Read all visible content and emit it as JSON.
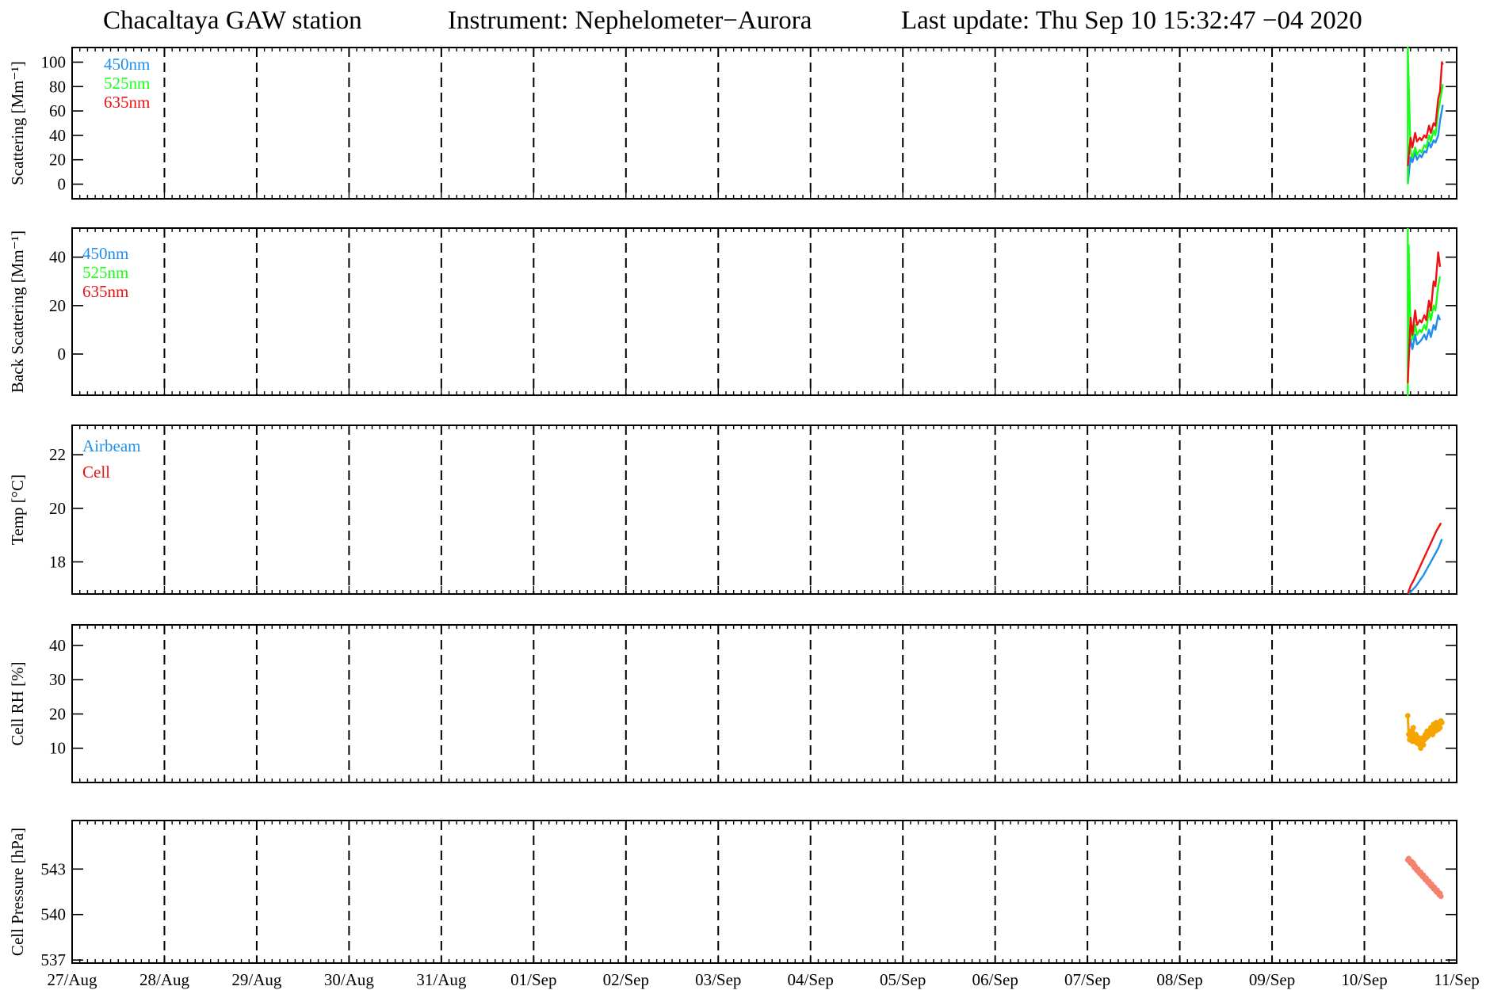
{
  "header": {
    "station": "Chacaltaya GAW station",
    "instrument": "Instrument: Nephelometer−Aurora",
    "last_update": "Last update: Thu Sep 10 15:32:47 −04 2020"
  },
  "colors": {
    "blue": "#1e8fea",
    "green": "#18ff18",
    "red": "#ee1111",
    "orange": "#f6a400",
    "salmon": "#f4826f"
  },
  "chart_data": [
    {
      "type": "line",
      "ylabel": "Scattering [Mm⁻¹]",
      "ylim": [
        -12,
        112
      ],
      "yticks": [
        0,
        20,
        40,
        60,
        80,
        100
      ],
      "x_ticklabels": [
        "27/Aug",
        "28/Aug",
        "29/Aug",
        "30/Aug",
        "31/Aug",
        "01/Sep",
        "02/Sep",
        "03/Sep",
        "04/Sep",
        "05/Sep",
        "06/Sep",
        "07/Sep",
        "08/Sep",
        "09/Sep",
        "10/Sep",
        "11/Sep"
      ],
      "xlim": [
        0,
        15
      ],
      "grid": "vertical dashed lines at each day",
      "legend_position": "top-left",
      "series": [
        {
          "name": "450nm",
          "color": "#1e8fea",
          "x": [
            14.47,
            14.5,
            14.52,
            14.55,
            14.57,
            14.6,
            14.62,
            14.65,
            14.67,
            14.7,
            14.72,
            14.75,
            14.77,
            14.8,
            14.82,
            14.85
          ],
          "y": [
            0,
            22,
            18,
            26,
            20,
            24,
            22,
            27,
            26,
            34,
            30,
            36,
            34,
            40,
            52,
            65
          ]
        },
        {
          "name": "525nm",
          "color": "#18ff18",
          "x": [
            14.47,
            14.47,
            14.5,
            14.52,
            14.55,
            14.57,
            14.6,
            14.62,
            14.65,
            14.67,
            14.7,
            14.72,
            14.75,
            14.77,
            14.8,
            14.82,
            14.85
          ],
          "y": [
            0,
            112,
            26,
            22,
            30,
            24,
            28,
            26,
            32,
            30,
            40,
            35,
            44,
            40,
            60,
            68,
            82
          ]
        },
        {
          "name": "635nm",
          "color": "#ee1111",
          "x": [
            14.47,
            14.5,
            14.52,
            14.55,
            14.57,
            14.6,
            14.62,
            14.65,
            14.67,
            14.7,
            14.72,
            14.75,
            14.77,
            14.8,
            14.82,
            14.84,
            14.85
          ],
          "y": [
            15,
            38,
            30,
            42,
            35,
            38,
            36,
            40,
            38,
            48,
            42,
            50,
            48,
            70,
            76,
            100,
            98
          ]
        }
      ]
    },
    {
      "type": "line",
      "ylabel": "Back Scattering [Mm⁻¹]",
      "ylim": [
        -17,
        52
      ],
      "yticks": [
        0,
        20,
        40
      ],
      "x_ticklabels": [
        "27/Aug",
        "28/Aug",
        "29/Aug",
        "30/Aug",
        "31/Aug",
        "01/Sep",
        "02/Sep",
        "03/Sep",
        "04/Sep",
        "05/Sep",
        "06/Sep",
        "07/Sep",
        "08/Sep",
        "09/Sep",
        "10/Sep",
        "11/Sep"
      ],
      "xlim": [
        0,
        15
      ],
      "grid": "vertical dashed lines at each day",
      "legend_position": "top-left",
      "series": [
        {
          "name": "450nm",
          "color": "#1e8fea",
          "x": [
            14.47,
            14.5,
            14.52,
            14.55,
            14.57,
            14.6,
            14.62,
            14.65,
            14.67,
            14.7,
            14.72,
            14.75,
            14.77,
            14.8,
            14.82
          ],
          "y": [
            -2,
            6,
            2,
            8,
            4,
            5,
            6,
            8,
            6,
            10,
            7,
            12,
            10,
            16,
            14
          ]
        },
        {
          "name": "525nm",
          "color": "#18ff18",
          "x": [
            14.47,
            14.47,
            14.48,
            14.5,
            14.52,
            14.55,
            14.57,
            14.6,
            14.62,
            14.65,
            14.67,
            14.7,
            14.72,
            14.75,
            14.77,
            14.8,
            14.82
          ],
          "y": [
            52,
            -17,
            45,
            10,
            6,
            12,
            8,
            10,
            9,
            12,
            10,
            18,
            14,
            20,
            18,
            28,
            32
          ]
        },
        {
          "name": "635nm",
          "color": "#ee1111",
          "x": [
            14.47,
            14.5,
            14.52,
            14.55,
            14.57,
            14.6,
            14.62,
            14.65,
            14.67,
            14.7,
            14.72,
            14.75,
            14.77,
            14.8,
            14.82
          ],
          "y": [
            -12,
            15,
            8,
            18,
            12,
            14,
            13,
            16,
            14,
            22,
            18,
            30,
            28,
            42,
            36
          ]
        }
      ]
    },
    {
      "type": "line",
      "ylabel": "Temp [°C]",
      "ylim": [
        16.8,
        23.1
      ],
      "yticks": [
        18,
        20,
        22
      ],
      "x_ticklabels": [
        "27/Aug",
        "28/Aug",
        "29/Aug",
        "30/Aug",
        "31/Aug",
        "01/Sep",
        "02/Sep",
        "03/Sep",
        "04/Sep",
        "05/Sep",
        "06/Sep",
        "07/Sep",
        "08/Sep",
        "09/Sep",
        "10/Sep",
        "11/Sep"
      ],
      "xlim": [
        0,
        15
      ],
      "grid": "vertical dashed lines at each day",
      "legend_position": "top-left",
      "series": [
        {
          "name": "Airbeam",
          "color": "#1e8fea",
          "x": [
            14.48,
            14.52,
            14.56,
            14.6,
            14.64,
            14.68,
            14.72,
            14.76,
            14.8,
            14.84
          ],
          "y": [
            16.8,
            16.95,
            17.1,
            17.3,
            17.5,
            17.75,
            18.0,
            18.25,
            18.5,
            18.85
          ]
        },
        {
          "name": "Cell",
          "color": "#ee1111",
          "x": [
            14.47,
            14.5,
            14.54,
            14.58,
            14.62,
            14.66,
            14.7,
            14.74,
            14.78,
            14.83
          ],
          "y": [
            16.8,
            17.1,
            17.35,
            17.65,
            17.95,
            18.25,
            18.55,
            18.85,
            19.15,
            19.45
          ]
        }
      ]
    },
    {
      "type": "scatter",
      "ylabel": "Cell RH  [%]",
      "ylim": [
        0,
        46
      ],
      "yticks": [
        10,
        20,
        30,
        40
      ],
      "x_ticklabels": [
        "27/Aug",
        "28/Aug",
        "29/Aug",
        "30/Aug",
        "31/Aug",
        "01/Sep",
        "02/Sep",
        "03/Sep",
        "04/Sep",
        "05/Sep",
        "06/Sep",
        "07/Sep",
        "08/Sep",
        "09/Sep",
        "10/Sep",
        "11/Sep"
      ],
      "xlim": [
        0,
        15
      ],
      "grid": "vertical dashed lines at each day",
      "series": [
        {
          "name": "",
          "color": "#f6a400",
          "x": [
            14.47,
            14.48,
            14.49,
            14.5,
            14.51,
            14.52,
            14.53,
            14.54,
            14.55,
            14.56,
            14.57,
            14.58,
            14.59,
            14.6,
            14.61,
            14.62,
            14.63,
            14.64,
            14.65,
            14.66,
            14.67,
            14.68,
            14.69,
            14.7,
            14.71,
            14.72,
            14.73,
            14.74,
            14.75,
            14.76,
            14.77,
            14.78,
            14.79,
            14.8,
            14.81,
            14.82,
            14.83,
            14.84
          ],
          "y": [
            19.5,
            14,
            12.5,
            15,
            13,
            12,
            16,
            13.5,
            12,
            14,
            11.5,
            12.5,
            13,
            11,
            10,
            12,
            13,
            11,
            12.5,
            14,
            13,
            15,
            13.5,
            15,
            14.5,
            16,
            15.5,
            14,
            17,
            16,
            15,
            17.5,
            16.5,
            15.5,
            17,
            16,
            18,
            17.5
          ]
        }
      ]
    },
    {
      "type": "scatter",
      "ylabel": "Cell Pressure  [hPa]",
      "ylim": [
        536.8,
        546.2
      ],
      "yticks": [
        537,
        540,
        543
      ],
      "x_ticklabels": [
        "27/Aug",
        "28/Aug",
        "29/Aug",
        "30/Aug",
        "31/Aug",
        "01/Sep",
        "02/Sep",
        "03/Sep",
        "04/Sep",
        "05/Sep",
        "06/Sep",
        "07/Sep",
        "08/Sep",
        "09/Sep",
        "10/Sep",
        "11/Sep"
      ],
      "xlim": [
        0,
        15
      ],
      "grid": "vertical dashed lines at each day",
      "series": [
        {
          "name": "",
          "color": "#f4826f",
          "x": [
            14.47,
            14.48,
            14.49,
            14.5,
            14.51,
            14.52,
            14.53,
            14.54,
            14.55,
            14.56,
            14.57,
            14.58,
            14.59,
            14.6,
            14.61,
            14.62,
            14.63,
            14.64,
            14.65,
            14.66,
            14.67,
            14.68,
            14.69,
            14.7,
            14.71,
            14.72,
            14.73,
            14.74,
            14.75,
            14.76,
            14.77,
            14.78,
            14.79,
            14.8,
            14.81,
            14.82,
            14.83
          ],
          "y": [
            543.6,
            543.7,
            543.5,
            543.4,
            543.5,
            543.3,
            543.4,
            543.1,
            543.2,
            543.0,
            542.9,
            543.0,
            542.8,
            542.7,
            542.8,
            542.6,
            542.5,
            542.6,
            542.4,
            542.3,
            542.4,
            542.2,
            542.1,
            542.2,
            542.0,
            541.9,
            542.0,
            541.8,
            541.7,
            541.8,
            541.6,
            541.5,
            541.6,
            541.4,
            541.3,
            541.4,
            541.2
          ]
        }
      ]
    }
  ]
}
